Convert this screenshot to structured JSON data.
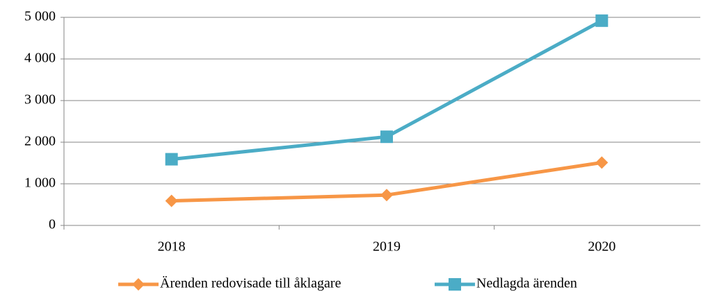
{
  "chart_data": {
    "type": "line",
    "categories": [
      "2018",
      "2019",
      "2020"
    ],
    "series": [
      {
        "name": "Ärenden redovisade till åklagare",
        "color": "#f79646",
        "marker": "diamond",
        "values": [
          590,
          730,
          1510
        ]
      },
      {
        "name": "Nedlagda ärenden",
        "color": "#4bacc6",
        "marker": "square",
        "values": [
          1590,
          2130,
          4920
        ]
      }
    ],
    "ylim": [
      0,
      5000
    ],
    "yticks": [
      0,
      {
        "value": 1000,
        "label": "1 000"
      },
      {
        "value": 2000,
        "label": "2 000"
      },
      {
        "value": 3000,
        "label": "3 000"
      },
      {
        "value": 4000,
        "label": "4 000"
      },
      {
        "value": 5000,
        "label": "5 000"
      }
    ],
    "grid": true,
    "legend": "bottom"
  }
}
